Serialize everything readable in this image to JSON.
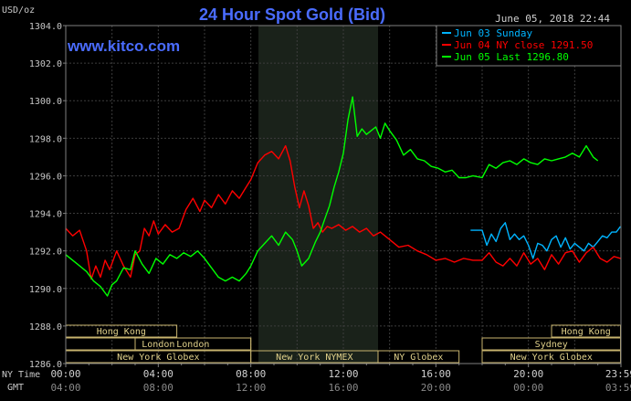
{
  "chart_data": {
    "type": "line",
    "title": "24 Hour Spot Gold (Bid)",
    "ylabel": "USD/oz",
    "timestamp": "June 05, 2018 22:44",
    "watermark": "www.kitco.com",
    "ylim": [
      1286.0,
      1304.0
    ],
    "xlim": [
      0,
      24
    ],
    "yticks": [
      "1304.0",
      "1302.0",
      "1300.0",
      "1298.0",
      "1296.0",
      "1294.0",
      "1292.0",
      "1290.0",
      "1288.0",
      "1286.0"
    ],
    "yticks_values": [
      1304,
      1302,
      1300,
      1298,
      1296,
      1294,
      1292,
      1290,
      1288,
      1286
    ],
    "xticks_ny": [
      "00:00",
      "04:00",
      "08:00",
      "12:00",
      "16:00",
      "20:00",
      "23:59"
    ],
    "xticks_gmt": [
      "04:00",
      "08:00",
      "12:00",
      "16:00",
      "20:00",
      "00:00",
      "03:59"
    ],
    "xticks_values": [
      0,
      4,
      8,
      12,
      16,
      20,
      23.98
    ],
    "ny_time_label": "NY Time",
    "gmt_label": "GMT",
    "legend": [
      {
        "label": "Jun 03 Sunday",
        "color": "#00b4ff"
      },
      {
        "label": "Jun 04 NY close 1291.50",
        "color": "#ff0000"
      },
      {
        "label": "Jun 05 Last 1296.80",
        "color": "#00ff00"
      }
    ],
    "series": [
      {
        "name": "Jun 03 Sunday",
        "color": "#00b4ff",
        "x": [
          17.5,
          18.0,
          18.2,
          18.4,
          18.6,
          18.8,
          19.0,
          19.2,
          19.4,
          19.6,
          19.8,
          20.0,
          20.2,
          20.4,
          20.6,
          20.8,
          21.0,
          21.2,
          21.4,
          21.6,
          21.8,
          22.0,
          22.2,
          22.4,
          22.6,
          22.8,
          23.0,
          23.2,
          23.4,
          23.6,
          23.8,
          23.98
        ],
        "y": [
          1293.1,
          1293.1,
          1292.3,
          1292.9,
          1292.5,
          1293.2,
          1293.5,
          1292.6,
          1292.9,
          1292.6,
          1292.8,
          1292.3,
          1291.6,
          1292.4,
          1292.3,
          1292.0,
          1292.6,
          1292.8,
          1292.2,
          1292.7,
          1292.1,
          1292.4,
          1292.2,
          1292.0,
          1292.4,
          1292.2,
          1292.5,
          1292.8,
          1292.7,
          1293.0,
          1293.0,
          1293.3
        ]
      },
      {
        "name": "Jun 04 NY close 1291.50",
        "color": "#ff0000",
        "x": [
          0,
          0.3,
          0.6,
          0.9,
          1.1,
          1.3,
          1.5,
          1.7,
          1.9,
          2.2,
          2.5,
          2.8,
          3.0,
          3.2,
          3.4,
          3.6,
          3.8,
          4.0,
          4.3,
          4.6,
          4.9,
          5.2,
          5.5,
          5.8,
          6.0,
          6.3,
          6.6,
          6.9,
          7.2,
          7.5,
          7.8,
          8.0,
          8.3,
          8.6,
          8.9,
          9.2,
          9.5,
          9.7,
          9.9,
          10.1,
          10.3,
          10.5,
          10.7,
          10.9,
          11.1,
          11.3,
          11.5,
          11.8,
          12.1,
          12.4,
          12.7,
          13.0,
          13.3,
          13.6,
          14.0,
          14.4,
          14.8,
          15.2,
          15.6,
          16.0,
          16.4,
          16.8,
          17.2,
          17.6,
          18.0,
          18.3,
          18.6,
          18.9,
          19.2,
          19.5,
          19.8,
          20.1,
          20.4,
          20.7,
          21.0,
          21.3,
          21.6,
          21.9,
          22.2,
          22.5,
          22.8,
          23.1,
          23.4,
          23.7,
          23.98
        ],
        "y": [
          1293.2,
          1292.8,
          1293.1,
          1292.0,
          1290.5,
          1291.2,
          1290.6,
          1291.5,
          1291.0,
          1292.0,
          1291.2,
          1290.6,
          1291.8,
          1292.0,
          1293.2,
          1292.8,
          1293.6,
          1292.9,
          1293.4,
          1293.0,
          1293.2,
          1294.2,
          1294.8,
          1294.1,
          1294.7,
          1294.3,
          1295.0,
          1294.5,
          1295.2,
          1294.8,
          1295.4,
          1295.8,
          1296.7,
          1297.1,
          1297.3,
          1296.9,
          1297.6,
          1296.8,
          1295.4,
          1294.3,
          1295.2,
          1294.4,
          1293.2,
          1293.5,
          1293.0,
          1293.3,
          1293.2,
          1293.4,
          1293.1,
          1293.3,
          1293.0,
          1293.2,
          1292.8,
          1293.0,
          1292.6,
          1292.2,
          1292.3,
          1292.0,
          1291.8,
          1291.5,
          1291.6,
          1291.4,
          1291.6,
          1291.5,
          1291.5,
          1291.9,
          1291.4,
          1291.2,
          1291.6,
          1291.2,
          1291.9,
          1291.3,
          1291.6,
          1291.0,
          1291.8,
          1291.3,
          1291.9,
          1292.0,
          1291.4,
          1291.9,
          1292.2,
          1291.6,
          1291.4,
          1291.7,
          1291.6
        ]
      },
      {
        "name": "Jun 05 Last 1296.80",
        "color": "#00ff00",
        "x": [
          0,
          0.3,
          0.6,
          0.9,
          1.2,
          1.5,
          1.8,
          2.0,
          2.2,
          2.5,
          2.8,
          3.0,
          3.3,
          3.6,
          3.9,
          4.2,
          4.5,
          4.8,
          5.1,
          5.4,
          5.7,
          6.0,
          6.3,
          6.6,
          6.9,
          7.2,
          7.5,
          7.8,
          8.0,
          8.3,
          8.6,
          8.9,
          9.2,
          9.5,
          9.8,
          10.0,
          10.2,
          10.5,
          10.8,
          11.0,
          11.2,
          11.4,
          11.6,
          11.8,
          12.0,
          12.2,
          12.4,
          12.6,
          12.8,
          13.0,
          13.2,
          13.4,
          13.6,
          13.8,
          14.0,
          14.3,
          14.6,
          14.9,
          15.2,
          15.5,
          15.8,
          16.1,
          16.4,
          16.7,
          17.0,
          17.3,
          17.6,
          18.0,
          18.3,
          18.6,
          18.9,
          19.2,
          19.5,
          19.8,
          20.1,
          20.4,
          20.7,
          21.0,
          21.3,
          21.6,
          21.9,
          22.2,
          22.5,
          22.8,
          23.0
        ],
        "y": [
          1291.8,
          1291.5,
          1291.2,
          1290.9,
          1290.4,
          1290.1,
          1289.6,
          1290.2,
          1290.4,
          1291.1,
          1291.0,
          1292.0,
          1291.3,
          1290.8,
          1291.6,
          1291.3,
          1291.8,
          1291.6,
          1291.9,
          1291.7,
          1292.0,
          1291.6,
          1291.1,
          1290.6,
          1290.4,
          1290.6,
          1290.4,
          1290.8,
          1291.2,
          1292.0,
          1292.4,
          1292.8,
          1292.3,
          1293.0,
          1292.6,
          1292.0,
          1291.2,
          1291.6,
          1292.5,
          1293.0,
          1293.7,
          1294.4,
          1295.4,
          1296.2,
          1297.2,
          1299.0,
          1300.2,
          1298.1,
          1298.5,
          1298.2,
          1298.4,
          1298.6,
          1298.0,
          1298.8,
          1298.4,
          1297.9,
          1297.1,
          1297.4,
          1296.9,
          1296.8,
          1296.5,
          1296.4,
          1296.2,
          1296.3,
          1295.9,
          1295.9,
          1296.0,
          1295.9,
          1296.6,
          1296.4,
          1296.7,
          1296.8,
          1296.6,
          1296.9,
          1296.7,
          1296.6,
          1296.9,
          1296.8,
          1296.9,
          1297.0,
          1297.2,
          1297.0,
          1297.6,
          1297.0,
          1296.8
        ]
      }
    ],
    "markets": [
      {
        "name": "Hong Kong",
        "row": 0,
        "start": 0,
        "end": 4.8
      },
      {
        "name": "London",
        "row": 1,
        "start": 0,
        "end": 8.0
      },
      {
        "name": "London",
        "row": 1,
        "start": 3.0,
        "end": 8.0
      },
      {
        "name": "New York Globex",
        "row": 2,
        "start": 0,
        "end": 8.0
      },
      {
        "name": "New York NYMEX",
        "row": 2,
        "start": 8.0,
        "end": 13.5
      },
      {
        "name": "NY Globex",
        "row": 2,
        "start": 13.5,
        "end": 17.0
      },
      {
        "name": "Hong Kong",
        "row": 0,
        "start": 21.0,
        "end": 23.98
      },
      {
        "name": "Sydney",
        "row": 1,
        "start": 18.0,
        "end": 23.98
      },
      {
        "name": "New York Globex",
        "row": 2,
        "start": 18.0,
        "end": 23.98
      }
    ],
    "highlight_range": [
      8.33,
      13.5
    ]
  }
}
